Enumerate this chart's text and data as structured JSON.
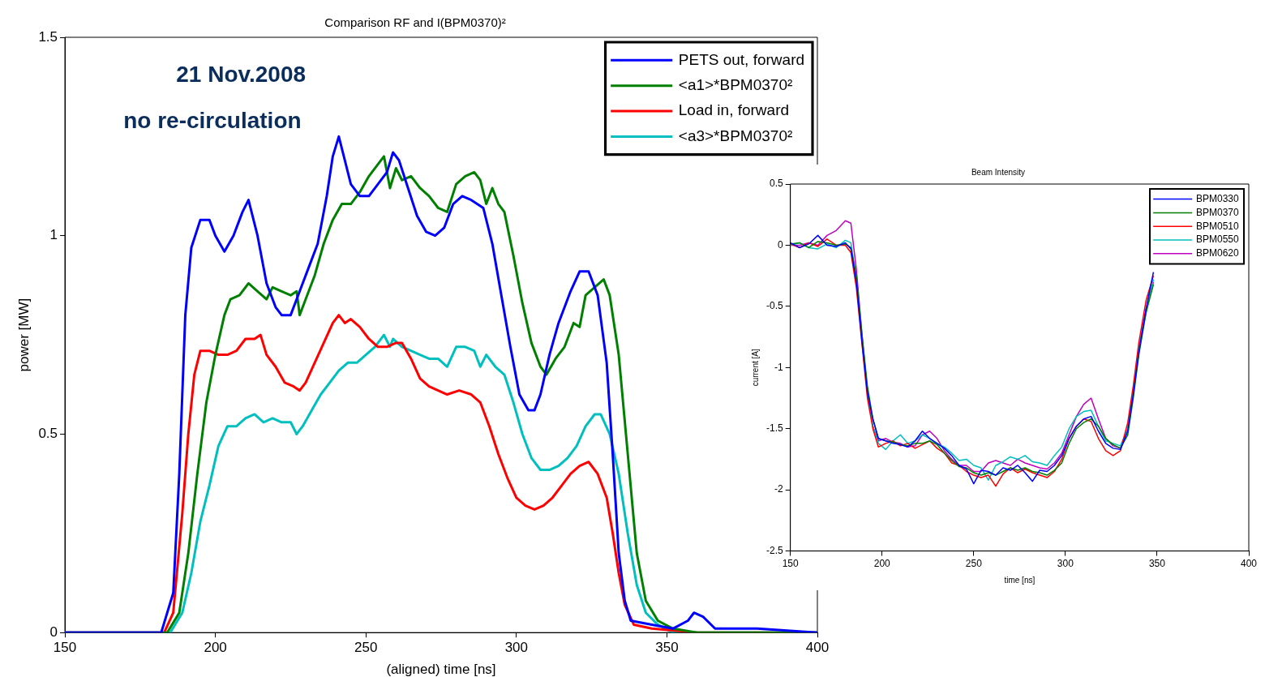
{
  "chart_data": [
    {
      "type": "line",
      "title": "Comparison RF and I(BPM0370)²",
      "xlabel": "(aligned) time [ns]",
      "ylabel": "power [MW]",
      "xlim": [
        150,
        400
      ],
      "xticks": [
        150,
        200,
        250,
        300,
        350,
        400
      ],
      "ylim": [
        0,
        1.5
      ],
      "yticks": [
        0,
        0.5,
        1,
        1.5
      ],
      "grid": false,
      "legend": "top right",
      "annotations": [
        "21 Nov.2008",
        "no re-circulation"
      ],
      "series": [
        {
          "name": "PETS out, forward",
          "color": "#0000ff",
          "x": [
            150,
            182,
            186,
            188,
            190,
            192,
            195,
            198,
            200,
            203,
            206,
            209,
            211,
            214,
            217,
            220,
            222,
            225,
            228,
            231,
            234,
            237,
            239,
            241,
            243,
            245,
            248,
            251,
            254,
            257,
            259,
            261,
            264,
            267,
            270,
            273,
            276,
            279,
            282,
            285,
            289,
            292,
            295,
            298,
            301,
            304,
            306,
            308,
            311,
            314,
            318,
            321,
            324,
            327,
            330,
            332,
            334,
            336,
            338,
            345,
            352,
            357,
            359,
            362,
            366,
            380,
            400
          ],
          "values": [
            0,
            0,
            0.1,
            0.4,
            0.8,
            0.97,
            1.04,
            1.04,
            1.0,
            0.96,
            1.0,
            1.06,
            1.09,
            1.0,
            0.88,
            0.82,
            0.8,
            0.8,
            0.86,
            0.92,
            0.98,
            1.1,
            1.2,
            1.25,
            1.19,
            1.13,
            1.1,
            1.1,
            1.13,
            1.16,
            1.21,
            1.19,
            1.12,
            1.05,
            1.01,
            1.0,
            1.02,
            1.08,
            1.1,
            1.09,
            1.07,
            0.98,
            0.85,
            0.72,
            0.6,
            0.56,
            0.56,
            0.6,
            0.7,
            0.78,
            0.86,
            0.91,
            0.91,
            0.85,
            0.68,
            0.45,
            0.2,
            0.08,
            0.03,
            0.02,
            0.01,
            0.03,
            0.05,
            0.04,
            0.01,
            0.01,
            0
          ]
        },
        {
          "name": "<a1>*BPM0370²",
          "color": "#008000",
          "x": [
            150,
            184,
            188,
            191,
            194,
            197,
            200,
            203,
            205,
            208,
            211,
            214,
            217,
            219,
            222,
            225,
            227,
            228,
            230,
            233,
            236,
            239,
            242,
            245,
            248,
            251,
            254,
            256,
            258,
            260,
            262,
            265,
            268,
            271,
            274,
            277,
            280,
            283,
            286,
            288,
            290,
            292,
            294,
            296,
            299,
            302,
            305,
            308,
            310,
            313,
            316,
            319,
            321,
            323,
            326,
            329,
            331,
            334,
            337,
            340,
            343,
            347,
            352,
            360,
            400
          ],
          "values": [
            0,
            0,
            0.05,
            0.2,
            0.4,
            0.58,
            0.7,
            0.8,
            0.84,
            0.85,
            0.88,
            0.86,
            0.84,
            0.87,
            0.86,
            0.85,
            0.86,
            0.8,
            0.84,
            0.9,
            0.98,
            1.04,
            1.08,
            1.08,
            1.11,
            1.15,
            1.18,
            1.2,
            1.12,
            1.17,
            1.14,
            1.15,
            1.12,
            1.1,
            1.07,
            1.06,
            1.13,
            1.15,
            1.16,
            1.14,
            1.08,
            1.12,
            1.08,
            1.06,
            0.95,
            0.83,
            0.73,
            0.67,
            0.65,
            0.69,
            0.72,
            0.78,
            0.77,
            0.85,
            0.87,
            0.89,
            0.85,
            0.7,
            0.45,
            0.2,
            0.08,
            0.03,
            0.01,
            0,
            0
          ]
        },
        {
          "name": "Load in, forward",
          "color": "#ff0000",
          "x": [
            150,
            183,
            186,
            189,
            191,
            193,
            195,
            198,
            201,
            204,
            207,
            210,
            213,
            215,
            217,
            220,
            223,
            226,
            228,
            230,
            233,
            236,
            239,
            241,
            243,
            245,
            248,
            251,
            254,
            257,
            260,
            262,
            265,
            268,
            271,
            274,
            277,
            281,
            285,
            288,
            291,
            294,
            297,
            300,
            303,
            306,
            309,
            312,
            315,
            318,
            321,
            324,
            327,
            330,
            332,
            334,
            336,
            339,
            345,
            360,
            400
          ],
          "values": [
            0,
            0,
            0.05,
            0.3,
            0.5,
            0.65,
            0.71,
            0.71,
            0.7,
            0.7,
            0.71,
            0.74,
            0.74,
            0.75,
            0.7,
            0.67,
            0.63,
            0.62,
            0.61,
            0.63,
            0.68,
            0.73,
            0.78,
            0.8,
            0.78,
            0.79,
            0.77,
            0.74,
            0.72,
            0.72,
            0.73,
            0.73,
            0.69,
            0.64,
            0.62,
            0.61,
            0.6,
            0.61,
            0.6,
            0.58,
            0.52,
            0.45,
            0.39,
            0.34,
            0.32,
            0.31,
            0.32,
            0.34,
            0.37,
            0.4,
            0.42,
            0.43,
            0.4,
            0.34,
            0.25,
            0.15,
            0.07,
            0.02,
            0.01,
            0,
            0
          ]
        },
        {
          "name": "<a3>*BPM0370²",
          "color": "#00bfbf",
          "x": [
            150,
            185,
            189,
            192,
            195,
            198,
            201,
            204,
            207,
            210,
            213,
            216,
            219,
            222,
            225,
            227,
            229,
            232,
            235,
            238,
            241,
            244,
            247,
            250,
            253,
            256,
            258,
            259,
            262,
            265,
            268,
            271,
            274,
            277,
            280,
            283,
            286,
            288,
            290,
            293,
            296,
            299,
            302,
            305,
            308,
            311,
            314,
            317,
            320,
            323,
            326,
            328,
            331,
            334,
            337,
            340,
            343,
            347,
            352,
            400
          ],
          "values": [
            0,
            0,
            0.05,
            0.15,
            0.28,
            0.37,
            0.47,
            0.52,
            0.52,
            0.54,
            0.55,
            0.53,
            0.54,
            0.53,
            0.53,
            0.5,
            0.52,
            0.56,
            0.6,
            0.63,
            0.66,
            0.68,
            0.68,
            0.7,
            0.72,
            0.75,
            0.72,
            0.74,
            0.72,
            0.71,
            0.7,
            0.69,
            0.69,
            0.67,
            0.72,
            0.72,
            0.71,
            0.67,
            0.7,
            0.67,
            0.65,
            0.58,
            0.5,
            0.44,
            0.41,
            0.41,
            0.42,
            0.44,
            0.47,
            0.52,
            0.55,
            0.55,
            0.5,
            0.4,
            0.25,
            0.12,
            0.05,
            0.02,
            0,
            0
          ]
        }
      ]
    },
    {
      "type": "line",
      "title": "Beam Intensity",
      "xlabel": "time [ns]",
      "ylabel": "current [A]",
      "xlim": [
        150,
        400
      ],
      "xticks": [
        150,
        200,
        250,
        300,
        350,
        400
      ],
      "ylim": [
        -2.5,
        0.5
      ],
      "yticks": [
        -2.5,
        -2,
        -1.5,
        -1,
        -0.5,
        0,
        0.5
      ],
      "grid": false,
      "legend": "top right",
      "x": [
        150,
        155,
        160,
        165,
        170,
        175,
        180,
        183,
        186,
        189,
        192,
        195,
        198,
        202,
        206,
        210,
        214,
        218,
        222,
        226,
        230,
        234,
        238,
        242,
        246,
        250,
        254,
        258,
        262,
        266,
        270,
        274,
        278,
        282,
        286,
        290,
        294,
        298,
        302,
        306,
        310,
        314,
        318,
        322,
        326,
        330,
        334,
        337,
        340,
        344,
        348
      ],
      "series": [
        {
          "name": "BPM0330",
          "color": "#0000ff",
          "values": [
            0.02,
            -0.02,
            0.01,
            0.08,
            0,
            -0.01,
            0.02,
            -0.03,
            -0.3,
            -0.78,
            -1.2,
            -1.42,
            -1.58,
            -1.6,
            -1.62,
            -1.63,
            -1.65,
            -1.6,
            -1.52,
            -1.58,
            -1.62,
            -1.66,
            -1.72,
            -1.8,
            -1.83,
            -1.95,
            -1.84,
            -1.85,
            -1.88,
            -1.82,
            -1.84,
            -1.8,
            -1.86,
            -1.93,
            -1.84,
            -1.85,
            -1.8,
            -1.72,
            -1.58,
            -1.48,
            -1.42,
            -1.4,
            -1.52,
            -1.62,
            -1.66,
            -1.67,
            -1.52,
            -1.22,
            -0.88,
            -0.52,
            -0.22
          ]
        },
        {
          "name": "BPM0370",
          "color": "#008000",
          "values": [
            0.01,
            0.02,
            -0.02,
            0.03,
            0.02,
            0,
            0.01,
            -0.02,
            -0.25,
            -0.72,
            -1.15,
            -1.42,
            -1.58,
            -1.6,
            -1.61,
            -1.63,
            -1.64,
            -1.62,
            -1.62,
            -1.6,
            -1.63,
            -1.7,
            -1.76,
            -1.81,
            -1.82,
            -1.86,
            -1.88,
            -1.86,
            -1.88,
            -1.85,
            -1.82,
            -1.84,
            -1.82,
            -1.85,
            -1.86,
            -1.88,
            -1.84,
            -1.78,
            -1.62,
            -1.5,
            -1.45,
            -1.42,
            -1.48,
            -1.58,
            -1.63,
            -1.66,
            -1.55,
            -1.25,
            -0.9,
            -0.55,
            -0.32
          ]
        },
        {
          "name": "BPM0510",
          "color": "#ff0000",
          "values": [
            0.01,
            -0.02,
            0.02,
            -0.01,
            0.05,
            0,
            0,
            -0.06,
            -0.35,
            -0.8,
            -1.25,
            -1.5,
            -1.65,
            -1.62,
            -1.6,
            -1.64,
            -1.62,
            -1.66,
            -1.63,
            -1.6,
            -1.66,
            -1.7,
            -1.78,
            -1.8,
            -1.85,
            -1.88,
            -1.9,
            -1.88,
            -1.97,
            -1.87,
            -1.82,
            -1.86,
            -1.83,
            -1.86,
            -1.88,
            -1.9,
            -1.85,
            -1.75,
            -1.58,
            -1.48,
            -1.42,
            -1.44,
            -1.58,
            -1.68,
            -1.72,
            -1.68,
            -1.45,
            -1.15,
            -0.8,
            -0.45,
            -0.25
          ]
        },
        {
          "name": "BPM0550",
          "color": "#00bfbf",
          "values": [
            0,
            0.02,
            -0.02,
            -0.03,
            0.01,
            -0.02,
            0.04,
            0.02,
            -0.28,
            -0.75,
            -1.18,
            -1.48,
            -1.62,
            -1.67,
            -1.6,
            -1.55,
            -1.62,
            -1.6,
            -1.55,
            -1.58,
            -1.62,
            -1.65,
            -1.7,
            -1.76,
            -1.75,
            -1.8,
            -1.82,
            -1.92,
            -1.8,
            -1.77,
            -1.73,
            -1.75,
            -1.72,
            -1.77,
            -1.78,
            -1.8,
            -1.72,
            -1.65,
            -1.5,
            -1.4,
            -1.36,
            -1.35,
            -1.48,
            -1.6,
            -1.62,
            -1.64,
            -1.5,
            -1.2,
            -0.85,
            -0.55,
            -0.28
          ]
        },
        {
          "name": "BPM0620",
          "color": "#bf00bf",
          "values": [
            0,
            0,
            0.02,
            0,
            0.08,
            0.12,
            0.2,
            0.18,
            -0.2,
            -0.72,
            -1.2,
            -1.48,
            -1.6,
            -1.58,
            -1.61,
            -1.62,
            -1.65,
            -1.64,
            -1.55,
            -1.52,
            -1.58,
            -1.68,
            -1.75,
            -1.8,
            -1.8,
            -1.85,
            -1.85,
            -1.78,
            -1.76,
            -1.78,
            -1.8,
            -1.75,
            -1.78,
            -1.8,
            -1.82,
            -1.83,
            -1.78,
            -1.7,
            -1.55,
            -1.4,
            -1.3,
            -1.25,
            -1.42,
            -1.58,
            -1.64,
            -1.66,
            -1.5,
            -1.2,
            -0.85,
            -0.52,
            -0.3
          ]
        }
      ]
    }
  ]
}
